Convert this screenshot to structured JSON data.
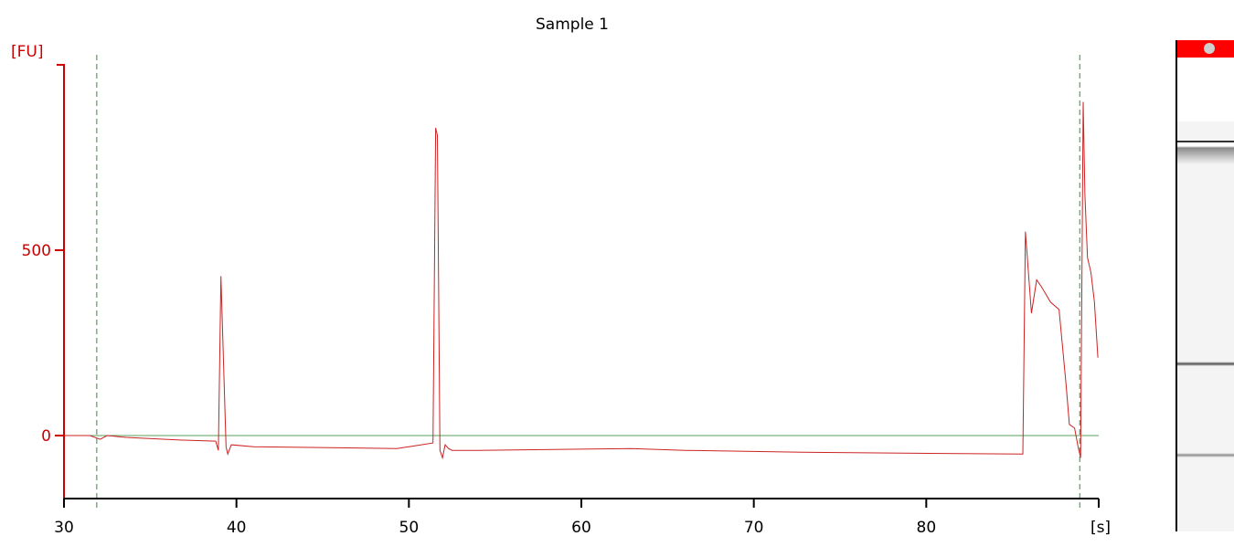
{
  "chart_data": {
    "type": "line",
    "title": "Sample 1",
    "ylabel": "[FU]",
    "xlabel": "[s]",
    "xlim": [
      30,
      90
    ],
    "ylim": [
      -170,
      1050
    ],
    "xticks": [
      30,
      40,
      50,
      60,
      70,
      80
    ],
    "yticks": [
      0,
      500
    ],
    "grid": false,
    "reference_lines": {
      "baseline_y": 0,
      "markers_x": [
        31.9,
        88.9
      ]
    },
    "series": [
      {
        "color": "#cc2222",
        "x": [
          30,
          31.5,
          32.1,
          32.5,
          33.6,
          36.7,
          38.8,
          38.95,
          39.1,
          39.25,
          39.4,
          39.5,
          39.7,
          41.0,
          49.3,
          50.3,
          51.4,
          51.55,
          51.65,
          51.8,
          51.95,
          52.1,
          52.3,
          52.5,
          54.0,
          62.9,
          66.0,
          72.8,
          85.6,
          85.75,
          86.1,
          86.4,
          86.7,
          87.2,
          87.7,
          88.1,
          88.3,
          88.6,
          88.8,
          88.95,
          89.1,
          89.2,
          89.35,
          89.55,
          89.75,
          89.95
        ],
        "y": [
          0,
          0,
          -10,
          0,
          -5,
          -12,
          -15,
          -40,
          430,
          200,
          -30,
          -50,
          -25,
          -30,
          -35,
          -28,
          -20,
          830,
          810,
          -40,
          -60,
          -25,
          -35,
          -40,
          -40,
          -35,
          -40,
          -45,
          -50,
          550,
          330,
          420,
          400,
          360,
          340,
          140,
          30,
          20,
          -30,
          -60,
          900,
          650,
          480,
          440,
          360,
          210
        ]
      }
    ]
  },
  "gel_lane": {
    "bands": [
      {
        "position": 0.205,
        "intensity": 0.8
      },
      {
        "position": 0.655,
        "intensity": 0.7
      },
      {
        "position": 0.84,
        "intensity": 0.45
      }
    ]
  }
}
